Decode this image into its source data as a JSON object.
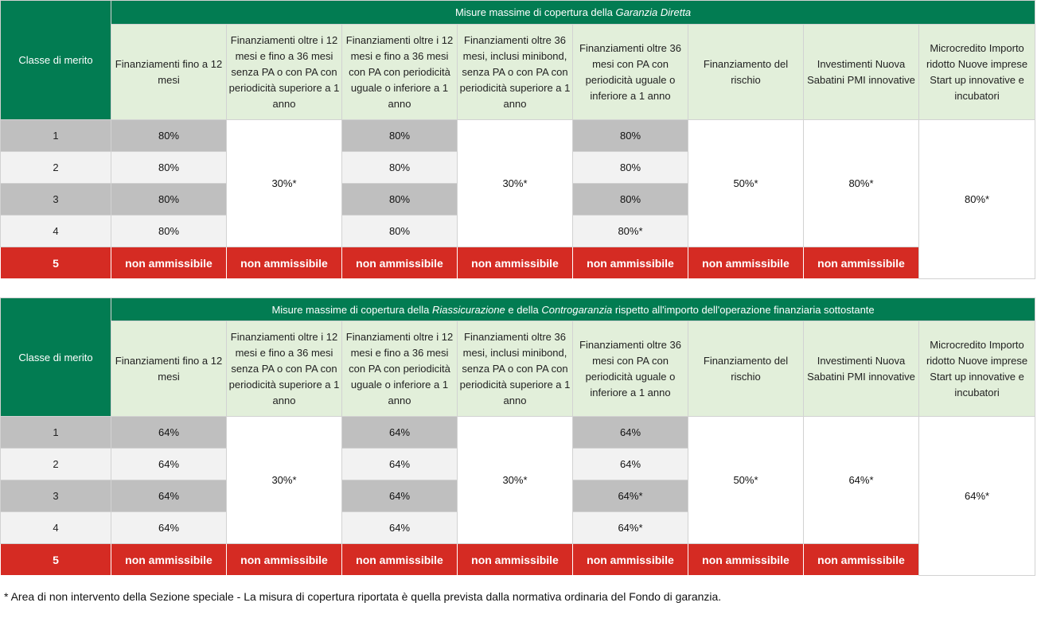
{
  "table1": {
    "merit_label": "Classe di merito",
    "title_prefix": "Misure massime di copertura della ",
    "title_italic": "Garanzia Diretta",
    "title_suffix": "",
    "columns": [
      "Finanziamenti fino a 12 mesi",
      "Finanziamenti oltre i 12 mesi e fino a 36 mesi senza PA o con PA con periodicità superiore a 1 anno",
      "Finanziamenti oltre i 12 mesi e fino a 36 mesi con PA con periodicità uguale o inferiore a 1 anno",
      "Finanziamenti oltre 36 mesi, inclusi minibond, senza PA o con PA con periodicità superiore a 1 anno",
      "Finanziamenti oltre 36 mesi con PA con periodicità uguale o inferiore a 1 anno",
      "Finanziamento del rischio",
      "Investimenti Nuova Sabatini PMI innovative",
      "Microcredito Importo ridotto Nuove imprese Start up innovative e incubatori"
    ],
    "classes": [
      "1",
      "2",
      "3",
      "4",
      "5"
    ],
    "col1": [
      "80%",
      "80%",
      "80%",
      "80%"
    ],
    "col2_merged": "30%*",
    "col3": [
      "80%",
      "80%",
      "80%",
      "80%"
    ],
    "col4_merged": "30%*",
    "col5": [
      "80%",
      "80%",
      "80%",
      "80%*"
    ],
    "col6_merged": "50%*",
    "col7_merged": "80%*",
    "col8_merged": "80%*",
    "not_eligible": "non ammissibile"
  },
  "table2": {
    "merit_label": "Classe di merito",
    "title_prefix": "Misure massime di copertura della ",
    "title_italic1": "Riassicurazione",
    "title_mid": " e della ",
    "title_italic2": "Controgaranzia",
    "title_suffix": " rispetto all'importo dell'operazione finanziaria sottostante",
    "columns": [
      "Finanziamenti fino a 12 mesi",
      "Finanziamenti oltre i 12 mesi e fino a 36 mesi senza PA o con PA con periodicità superiore a 1 anno",
      "Finanziamenti oltre i 12 mesi e fino a 36 mesi con PA con periodicità uguale o inferiore a 1 anno",
      "Finanziamenti oltre 36 mesi, inclusi minibond, senza PA o con PA con periodicità superiore a 1 anno",
      "Finanziamenti oltre 36 mesi con PA con periodicità uguale o inferiore a 1 anno",
      "Finanziamento del rischio",
      "Investimenti Nuova Sabatini PMI innovative",
      "Microcredito Importo ridotto Nuove imprese Start up innovative e incubatori"
    ],
    "classes": [
      "1",
      "2",
      "3",
      "4",
      "5"
    ],
    "col1": [
      "64%",
      "64%",
      "64%",
      "64%"
    ],
    "col2_merged": "30%*",
    "col3": [
      "64%",
      "64%",
      "64%",
      "64%"
    ],
    "col4_merged": "30%*",
    "col5": [
      "64%",
      "64%",
      "64%*",
      "64%*"
    ],
    "col6_merged": "50%*",
    "col7_merged": "64%*",
    "col8_merged": "64%*",
    "not_eligible": "non ammissibile"
  },
  "footnote": "* Area di non intervento della Sezione speciale - La misura di copertura riportata è quella prevista dalla normativa ordinaria del Fondo di garanzia.",
  "colors": {
    "header_green": "#027c52",
    "header_light_green": "#e2efda",
    "row_gray": "#bfbfbf",
    "row_light": "#f2f2f2",
    "not_eligible_red": "#d52b23"
  }
}
